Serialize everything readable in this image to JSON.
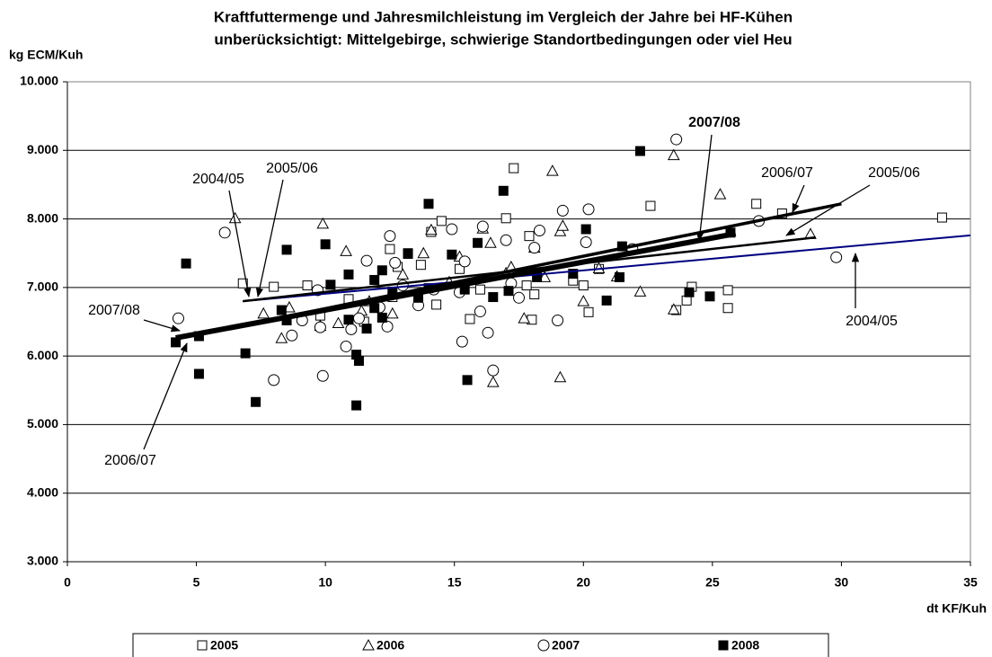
{
  "chart_data": {
    "type": "scatter",
    "title": "Kraftfuttermenge und Jahresmilchleistung im Vergleich der Jahre bei HF-Kühen",
    "subtitle": "unberücksichtigt: Mittelgebirge, schwierige Standortbedingungen oder viel Heu",
    "y_label": "kg  ECM/Kuh",
    "x_label": "dt KF/Kuh",
    "xlim": [
      0,
      35
    ],
    "xticks": [
      0,
      5,
      10,
      15,
      20,
      25,
      30,
      35
    ],
    "ylim": [
      3000,
      10000
    ],
    "yticks": [
      {
        "value": 3000,
        "label": "3.000"
      },
      {
        "value": 4000,
        "label": "4.000"
      },
      {
        "value": 5000,
        "label": "5.000"
      },
      {
        "value": 6000,
        "label": "6.000"
      },
      {
        "value": 7000,
        "label": "7.000"
      },
      {
        "value": 8000,
        "label": "8.000"
      },
      {
        "value": 9000,
        "label": "9.000"
      },
      {
        "value": 10000,
        "label": "10.000"
      }
    ],
    "grid": true,
    "legend": "bottom",
    "series": [
      {
        "name": "2005",
        "marker": "square-open",
        "color": "#000000",
        "x": [
          6.8,
          8,
          9.3,
          9.8,
          10.9,
          12.5,
          12.6,
          13.2,
          13.7,
          14.1,
          14.3,
          14.5,
          15.2,
          15.6,
          16,
          17,
          17.3,
          17.8,
          18,
          18.1,
          17.9,
          19.6,
          20,
          20.2,
          20.6,
          22.6,
          23.6,
          24,
          24.2,
          25.6,
          25.6,
          26.7,
          27.7,
          33.9,
          11.5,
          12.8
        ],
        "values": [
          7060,
          7010,
          7030,
          6590,
          6830,
          7560,
          6860,
          7500,
          7330,
          7810,
          6750,
          7970,
          7270,
          6540,
          6970,
          8010,
          8740,
          7030,
          6530,
          6900,
          7750,
          7100,
          7030,
          6640,
          7270,
          8190,
          6670,
          6810,
          7010,
          6960,
          6700,
          8220,
          8080,
          8020,
          6500,
          7300
        ]
      },
      {
        "name": "2006",
        "marker": "triangle-open",
        "color": "#000000",
        "x": [
          6.5,
          7.6,
          8.3,
          8.6,
          9.9,
          9.8,
          10.5,
          10.8,
          11.4,
          11.7,
          12.6,
          13,
          13.8,
          14.1,
          15.2,
          14.8,
          16.4,
          16.5,
          17,
          17.2,
          17.7,
          18.1,
          18.5,
          18.8,
          19.1,
          19.1,
          19.2,
          20.6,
          21.3,
          22.2,
          23.5,
          23.5,
          25.3,
          28.8,
          16.1,
          20
        ],
        "values": [
          8010,
          6620,
          6260,
          6710,
          7930,
          6440,
          6480,
          7530,
          6660,
          6800,
          6620,
          7190,
          7500,
          7840,
          7450,
          7080,
          7650,
          5620,
          7210,
          7300,
          6550,
          7580,
          7150,
          8700,
          5690,
          7820,
          7900,
          7280,
          7160,
          6940,
          8930,
          6680,
          8360,
          7780,
          7860,
          6800
        ]
      },
      {
        "name": "2007",
        "marker": "circle-open",
        "color": "#000000",
        "x": [
          4.3,
          6.1,
          8,
          8.7,
          9.1,
          9.7,
          9.8,
          9.9,
          10.8,
          11,
          11.3,
          11.6,
          12.1,
          12.5,
          12.7,
          13,
          13.6,
          14.2,
          14.9,
          15.2,
          15.3,
          15.4,
          16,
          16.1,
          16.3,
          16.5,
          17,
          17.2,
          17.5,
          18.1,
          18.3,
          19,
          19.2,
          20.2,
          20.1,
          21.9,
          23.6,
          26.8,
          29.8,
          12.4
        ],
        "values": [
          6550,
          7800,
          5650,
          6300,
          6520,
          6960,
          6420,
          5710,
          6140,
          6390,
          6550,
          7390,
          6710,
          7750,
          7360,
          7030,
          6740,
          6970,
          7850,
          6930,
          6210,
          7380,
          6650,
          7890,
          6340,
          5790,
          7690,
          7060,
          6850,
          7580,
          7830,
          6520,
          8120,
          8140,
          7660,
          7560,
          9160,
          7970,
          7440,
          6430
        ]
      },
      {
        "name": "2008",
        "marker": "square-filled",
        "color": "#000000",
        "x": [
          4.2,
          4.6,
          5.1,
          5.1,
          6.9,
          7.3,
          8.3,
          8.5,
          8.5,
          10,
          10.2,
          10.9,
          10.9,
          11.2,
          11.2,
          11.3,
          11.6,
          11.9,
          11.9,
          12.2,
          12.2,
          12.6,
          13.2,
          13.6,
          14,
          14,
          14.9,
          15.4,
          15.5,
          15.9,
          16.5,
          16.9,
          17.1,
          18.2,
          19.6,
          20.1,
          20.9,
          21.4,
          21.5,
          22.2,
          24.1,
          24.9,
          25.7
        ],
        "values": [
          6200,
          7350,
          6290,
          5740,
          6040,
          5330,
          6670,
          7550,
          6520,
          7630,
          7040,
          7190,
          6530,
          6020,
          5280,
          5930,
          6400,
          7110,
          6700,
          7250,
          6560,
          6940,
          7490,
          6850,
          8220,
          6990,
          7480,
          6970,
          5650,
          7650,
          6860,
          8410,
          6950,
          7150,
          7200,
          7850,
          6810,
          7150,
          7600,
          8990,
          6930,
          6870,
          7800
        ]
      }
    ],
    "trendlines": [
      {
        "labels": [
          "2004/05",
          "2004/05"
        ],
        "color": "#000080",
        "x": [
          6.8,
          35
        ],
        "values": [
          6800,
          7760
        ]
      },
      {
        "labels": [
          "2005/06",
          "2005/06"
        ],
        "color": "#000000",
        "x": [
          6.8,
          29
        ],
        "values": [
          6800,
          7730
        ]
      },
      {
        "labels": [
          "2006/07",
          "2006/07"
        ],
        "color": "#000000",
        "x": [
          4.2,
          30
        ],
        "values": [
          6250,
          8220
        ]
      },
      {
        "labels": [
          "2007/08",
          "2007/08"
        ],
        "color": "#000000",
        "x": [
          4.2,
          25.9
        ],
        "values": [
          6265,
          7785
        ]
      }
    ]
  }
}
